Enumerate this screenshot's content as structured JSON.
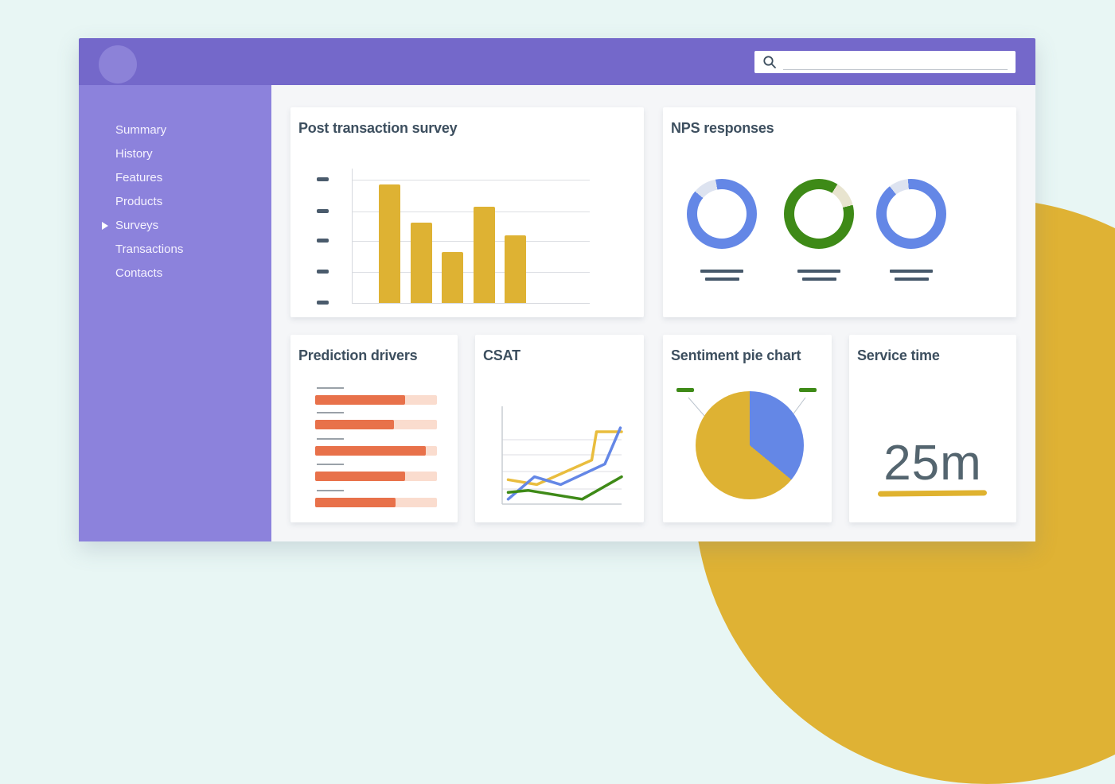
{
  "topbar": {
    "background": "#7468ca",
    "avatar_color": "#8c82d8",
    "search": {
      "placeholder": "",
      "value": ""
    }
  },
  "sidebar": {
    "background": "#8c82dc",
    "items": [
      {
        "label": "Summary",
        "active": false
      },
      {
        "label": "History",
        "active": false
      },
      {
        "label": "Features",
        "active": false
      },
      {
        "label": "Products",
        "active": false
      },
      {
        "label": "Surveys",
        "active": true
      },
      {
        "label": "Transactions",
        "active": false
      },
      {
        "label": "Contacts",
        "active": false
      }
    ]
  },
  "cards": {
    "post_transaction_survey": {
      "title": "Post transaction survey"
    },
    "nps_responses": {
      "title": "NPS responses"
    },
    "prediction_drivers": {
      "title": "Prediction drivers"
    },
    "csat": {
      "title": "CSAT"
    },
    "sentiment_pie": {
      "title": "Sentiment pie chart"
    },
    "service_time": {
      "title": "Service time",
      "value": "25m"
    }
  },
  "colors": {
    "page_background": "#e8f6f4",
    "content_background": "#f5f6f8",
    "card_background": "#ffffff",
    "title_text": "#3d4f5f",
    "yellow": "#deb233",
    "orange": "#e8714a",
    "orange_track": "#fadcce",
    "blue": "#6487e6",
    "green": "#3e8a17",
    "slate_dash": "#4a5b6c",
    "blob_yellow": "#dfb234"
  },
  "chart_data": [
    {
      "id": "post_transaction_survey",
      "type": "bar",
      "title": "Post transaction survey",
      "categories": [
        "",
        "",
        "",
        "",
        ""
      ],
      "values": [
        96,
        65,
        41,
        78,
        55
      ],
      "ylim": [
        0,
        109
      ],
      "bar_color": "#deb233",
      "grid": true,
      "tick_labels": "placeholder-dashes"
    },
    {
      "id": "nps_responses",
      "type": "donut",
      "title": "NPS responses",
      "donuts": [
        {
          "fill_color": "#6487e6",
          "fill_pct": 89,
          "gap_color": "#dde3f0",
          "gap_pct": 11,
          "gap_start_deg": 310
        },
        {
          "fill_color": "#3e8a17",
          "fill_pct": 88,
          "gap_color": "#e8e4cf",
          "gap_pct": 12,
          "gap_start_deg": 32
        },
        {
          "fill_color": "#6487e6",
          "fill_pct": 91,
          "gap_color": "#dde3f0",
          "gap_pct": 9,
          "gap_start_deg": 322
        }
      ]
    },
    {
      "id": "prediction_drivers",
      "type": "bar-horizontal",
      "title": "Prediction drivers",
      "values_pct": [
        74,
        65,
        91,
        74,
        66
      ],
      "fill_color": "#e8714a",
      "track_color": "#fadcce"
    },
    {
      "id": "csat",
      "type": "line",
      "title": "CSAT",
      "x_range": [
        0,
        100
      ],
      "y_range": [
        0,
        100
      ],
      "grid": true,
      "series": [
        {
          "name": "yellow",
          "color": "#e9bd3e",
          "points": [
            [
              5,
              25
            ],
            [
              29,
              20
            ],
            [
              75,
              45
            ],
            [
              79,
              74
            ],
            [
              100,
              74
            ]
          ]
        },
        {
          "name": "blue",
          "color": "#6487e6",
          "points": [
            [
              5,
              5
            ],
            [
              27,
              28
            ],
            [
              49,
              20
            ],
            [
              86,
              41
            ],
            [
              99,
              78
            ]
          ]
        },
        {
          "name": "green",
          "color": "#3e8a17",
          "points": [
            [
              5,
              12
            ],
            [
              22,
              14
            ],
            [
              67,
              5
            ],
            [
              100,
              28
            ]
          ]
        }
      ]
    },
    {
      "id": "sentiment_pie",
      "type": "pie",
      "title": "Sentiment pie chart",
      "slices": [
        {
          "name": "blue",
          "color": "#6487e6",
          "pct": 36
        },
        {
          "name": "yellow",
          "color": "#deb233",
          "pct": 64
        }
      ],
      "callouts": 2
    },
    {
      "id": "service_time",
      "type": "metric",
      "title": "Service time",
      "value": "25m"
    }
  ]
}
